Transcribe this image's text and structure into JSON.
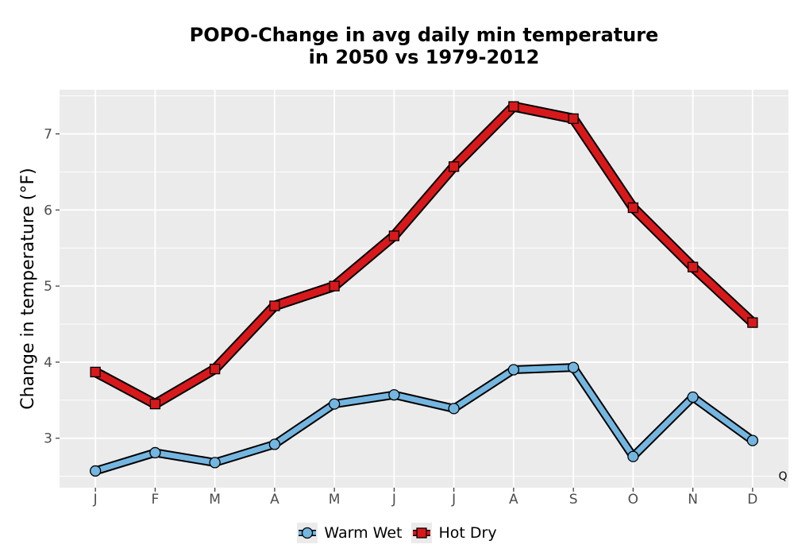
{
  "chart_data": {
    "type": "line",
    "title_lines": [
      "POPO-Change in avg daily min temperature",
      "in 2050 vs 1979-2012"
    ],
    "ylabel": "Change in temperature (°F)",
    "xlabel": "",
    "categories": [
      "J",
      "F",
      "M",
      "A",
      "M",
      "J",
      "J",
      "A",
      "S",
      "O",
      "N",
      "D"
    ],
    "ylim": [
      2.35,
      7.58
    ],
    "yticks": [
      3,
      4,
      5,
      6,
      7
    ],
    "grid": true,
    "legend_position": "bottom",
    "corner_label": "Q",
    "series": [
      {
        "name": "Warm Wet",
        "marker": "circle",
        "color": "#74b6e0",
        "values": [
          2.57,
          2.81,
          2.68,
          2.92,
          3.45,
          3.57,
          3.39,
          3.9,
          3.93,
          2.76,
          3.54,
          2.97
        ]
      },
      {
        "name": "Hot Dry",
        "marker": "square",
        "color": "#d7191c",
        "values": [
          3.87,
          3.45,
          3.91,
          4.74,
          5.0,
          5.66,
          6.57,
          7.36,
          7.2,
          6.03,
          5.25,
          4.52
        ]
      }
    ]
  }
}
